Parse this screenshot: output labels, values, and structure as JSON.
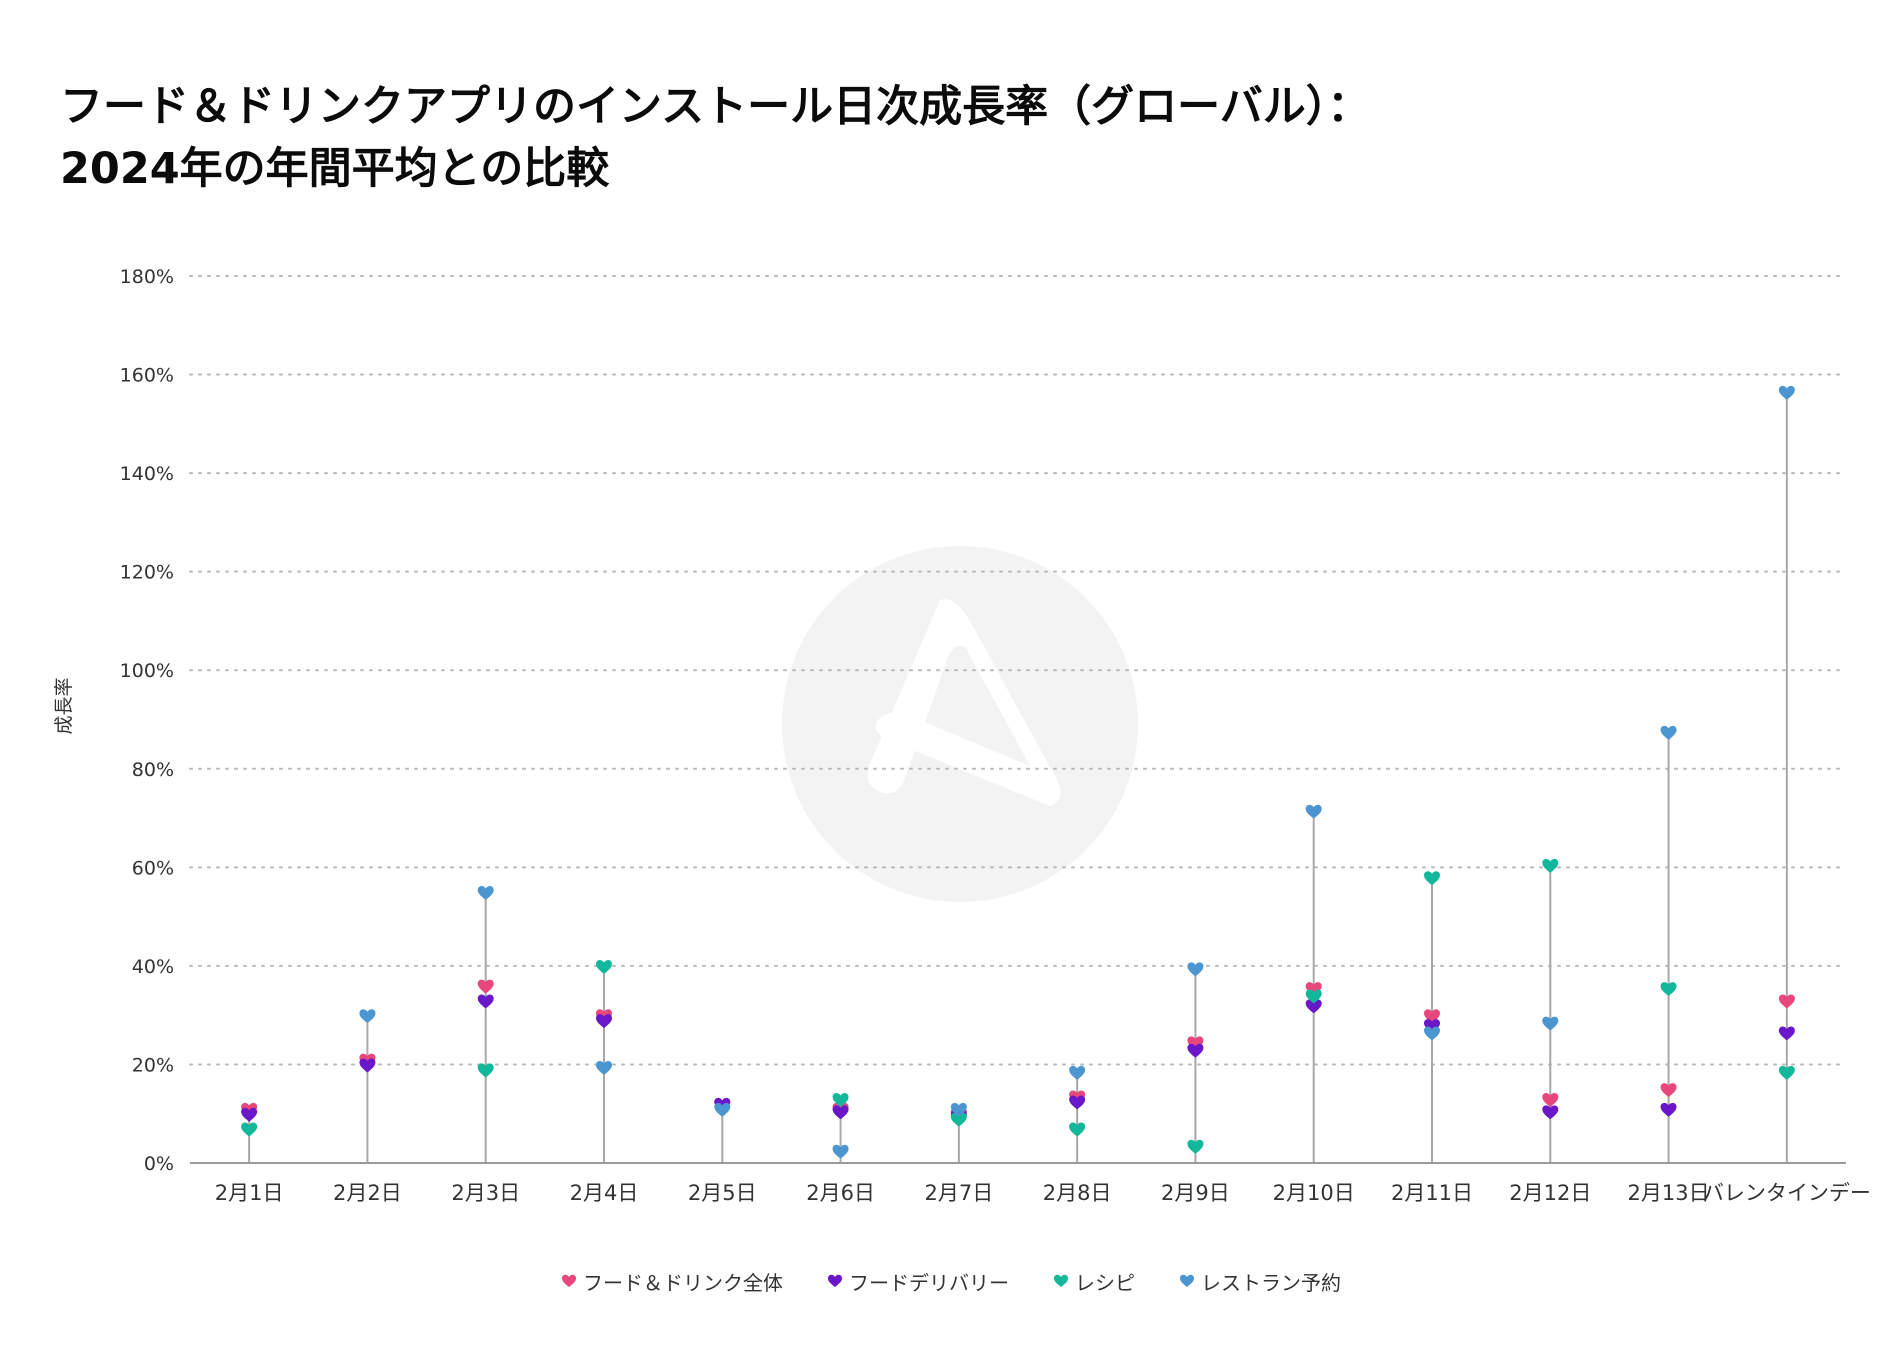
{
  "title": {
    "line1": "フード＆ドリンクアプリのインストール日次成長率（グローバル）：",
    "line2": "2024年の年間平均との比較"
  },
  "chart_data": {
    "type": "scatter",
    "title": "フード＆ドリンクアプリのインストール日次成長率（グローバル）：2024年の年間平均との比較",
    "xlabel": "",
    "ylabel": "成長率",
    "ylim": [
      0,
      180
    ],
    "yticks": [
      0,
      20,
      40,
      60,
      80,
      100,
      120,
      140,
      160,
      180
    ],
    "ytick_labels": [
      "0%",
      "20%",
      "40%",
      "60%",
      "80%",
      "100%",
      "120%",
      "140%",
      "160%",
      "180%"
    ],
    "grid": true,
    "legend_position": "bottom-center",
    "categories": [
      "2月1日",
      "2月2日",
      "2月3日",
      "2月4日",
      "2月5日",
      "2月6日",
      "2月7日",
      "2月8日",
      "2月9日",
      "2月10日",
      "2月11日",
      "2月12日",
      "2月13日",
      "バレンタインデー"
    ],
    "series": [
      {
        "name": "フード＆ドリンク全体",
        "color": "#e8477c",
        "values": [
          11,
          21,
          36,
          30,
          12,
          11,
          10,
          13.5,
          24.5,
          35.5,
          30,
          13,
          15,
          33
        ]
      },
      {
        "name": "フードデリバリー",
        "color": "#6a17c9",
        "values": [
          10,
          20,
          33,
          29,
          12,
          10.5,
          9.5,
          12.5,
          23,
          32,
          28,
          10.5,
          11,
          26.5
        ]
      },
      {
        "name": "レシピ",
        "color": "#12b89a",
        "values": [
          7,
          null,
          19,
          40,
          null,
          13,
          9,
          7,
          3.5,
          34,
          58,
          60.5,
          35.5,
          18.5
        ]
      },
      {
        "name": "レストラン予約",
        "color": "#4b96d1",
        "values": [
          null,
          30,
          55,
          19.5,
          11,
          2.5,
          11,
          18.5,
          39.5,
          71.5,
          26.5,
          28.5,
          87.5,
          156.5
        ]
      }
    ]
  },
  "legend": {
    "items": [
      {
        "label": "フード＆ドリンク全体",
        "color": "#e8477c"
      },
      {
        "label": "フードデリバリー",
        "color": "#6a17c9"
      },
      {
        "label": "レシピ",
        "color": "#12b89a"
      },
      {
        "label": "レストラン予約",
        "color": "#4b96d1"
      }
    ]
  }
}
